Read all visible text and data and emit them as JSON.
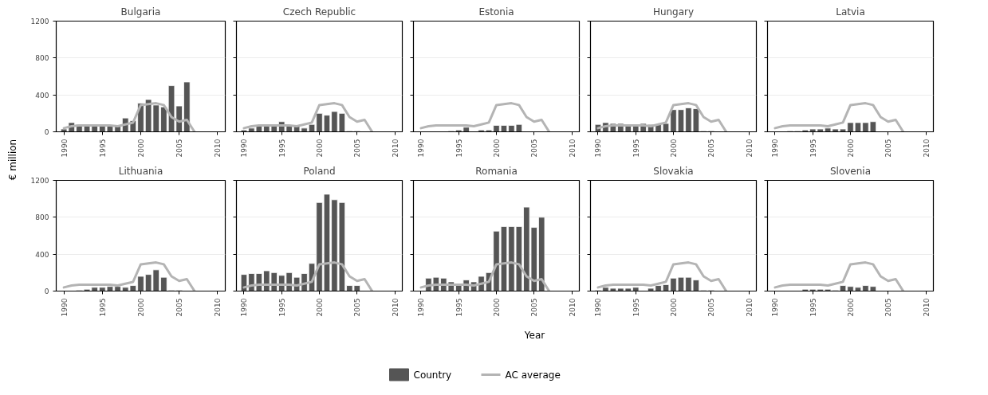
{
  "chart_data": [
    {
      "type": "bar",
      "title": "Bulgaria",
      "ylabel": "€ million",
      "legend": "bottom",
      "x": [
        1990,
        1991,
        1992,
        1993,
        1994,
        1995,
        1996,
        1997,
        1998,
        1999,
        2000,
        2001,
        2002,
        2003,
        2004,
        2005,
        2006,
        2007
      ],
      "xlim": [
        1989,
        2011
      ],
      "xticks": [
        1990,
        1995,
        2000,
        2005,
        2010
      ],
      "ylim": [
        0,
        1200
      ],
      "yticks": [
        0,
        400,
        800,
        1200
      ],
      "grid": "y",
      "series": [
        {
          "name": "Country",
          "color": "#555555",
          "values": [
            30,
            100,
            80,
            80,
            60,
            60,
            60,
            60,
            150,
            120,
            310,
            350,
            290,
            270,
            500,
            280,
            540,
            null
          ]
        },
        {
          "name": "AC average",
          "type": "line",
          "color": "#b4b4b4",
          "values": [
            40,
            60,
            70,
            70,
            70,
            70,
            70,
            60,
            80,
            100,
            290,
            300,
            310,
            290,
            160,
            110,
            130,
            0
          ]
        }
      ]
    },
    {
      "type": "bar",
      "title": "Czech Republic",
      "tick_labels": "x",
      "x": [
        1990,
        1991,
        1992,
        1993,
        1994,
        1995,
        1996,
        1997,
        1998,
        1999,
        2000,
        2001,
        2002,
        2003,
        2004,
        2005,
        2006,
        2007
      ],
      "xlim": [
        1989,
        2011
      ],
      "xticks": [
        1990,
        1995,
        2000,
        2005,
        2010
      ],
      "ylim": [
        0,
        1200
      ],
      "yticks": [
        0,
        400,
        800,
        1200
      ],
      "grid": "y",
      "series": [
        {
          "color": "#555555",
          "values": [
            20,
            40,
            60,
            60,
            60,
            110,
            60,
            60,
            40,
            80,
            200,
            180,
            220,
            200,
            10,
            10,
            null,
            null
          ]
        },
        {
          "type": "line",
          "color": "#b4b4b4",
          "values": [
            40,
            60,
            70,
            70,
            70,
            70,
            70,
            60,
            80,
            100,
            290,
            300,
            310,
            290,
            160,
            110,
            130,
            0
          ]
        }
      ]
    },
    {
      "type": "bar",
      "title": "Estonia",
      "tick_labels": "x",
      "x": [
        1990,
        1991,
        1992,
        1993,
        1994,
        1995,
        1996,
        1997,
        1998,
        1999,
        2000,
        2001,
        2002,
        2003,
        2004,
        2005,
        2006,
        2007
      ],
      "xlim": [
        1989,
        2011
      ],
      "xticks": [
        1990,
        1995,
        2000,
        2005,
        2010
      ],
      "ylim": [
        0,
        1200
      ],
      "yticks": [
        0,
        400,
        800,
        1200
      ],
      "grid": "y",
      "series": [
        {
          "color": "#555555",
          "values": [
            null,
            null,
            5,
            5,
            10,
            20,
            50,
            null,
            20,
            20,
            70,
            70,
            70,
            80,
            null,
            null,
            null,
            null
          ]
        },
        {
          "type": "line",
          "color": "#b4b4b4",
          "values": [
            40,
            60,
            70,
            70,
            70,
            70,
            70,
            60,
            80,
            100,
            290,
            300,
            310,
            290,
            160,
            110,
            130,
            0
          ]
        }
      ]
    },
    {
      "type": "bar",
      "title": "Hungary",
      "tick_labels": "x",
      "x": [
        1990,
        1991,
        1992,
        1993,
        1994,
        1995,
        1996,
        1997,
        1998,
        1999,
        2000,
        2001,
        2002,
        2003,
        2004,
        2005,
        2006,
        2007
      ],
      "xlim": [
        1989,
        2011
      ],
      "xticks": [
        1990,
        1995,
        2000,
        2005,
        2010
      ],
      "ylim": [
        0,
        1200
      ],
      "yticks": [
        0,
        400,
        800,
        1200
      ],
      "grid": "y",
      "series": [
        {
          "color": "#555555",
          "values": [
            80,
            100,
            90,
            90,
            70,
            80,
            90,
            80,
            80,
            90,
            240,
            240,
            260,
            250,
            10,
            10,
            null,
            null
          ]
        },
        {
          "type": "line",
          "color": "#b4b4b4",
          "values": [
            40,
            60,
            70,
            70,
            70,
            70,
            70,
            60,
            80,
            100,
            290,
            300,
            310,
            290,
            160,
            110,
            130,
            0
          ]
        }
      ]
    },
    {
      "type": "bar",
      "title": "Latvia",
      "tick_labels": "x",
      "x": [
        1990,
        1991,
        1992,
        1993,
        1994,
        1995,
        1996,
        1997,
        1998,
        1999,
        2000,
        2001,
        2002,
        2003,
        2004,
        2005,
        2006,
        2007
      ],
      "xlim": [
        1989,
        2011
      ],
      "xticks": [
        1990,
        1995,
        2000,
        2005,
        2010
      ],
      "ylim": [
        0,
        1200
      ],
      "yticks": [
        0,
        400,
        800,
        1200
      ],
      "grid": "y",
      "series": [
        {
          "color": "#555555",
          "values": [
            null,
            null,
            10,
            10,
            20,
            30,
            30,
            40,
            30,
            30,
            100,
            100,
            100,
            110,
            null,
            null,
            null,
            null
          ]
        },
        {
          "type": "line",
          "color": "#b4b4b4",
          "values": [
            40,
            60,
            70,
            70,
            70,
            70,
            70,
            60,
            80,
            100,
            290,
            300,
            310,
            290,
            160,
            110,
            130,
            0
          ]
        }
      ]
    },
    {
      "type": "bar",
      "title": "Lithuania",
      "x": [
        1990,
        1991,
        1992,
        1993,
        1994,
        1995,
        1996,
        1997,
        1998,
        1999,
        2000,
        2001,
        2002,
        2003,
        2004,
        2005,
        2006,
        2007
      ],
      "xlim": [
        1989,
        2011
      ],
      "xticks": [
        1990,
        1995,
        2000,
        2005,
        2010
      ],
      "ylim": [
        0,
        1200
      ],
      "yticks": [
        0,
        400,
        800,
        1200
      ],
      "grid": "y",
      "series": [
        {
          "color": "#555555",
          "values": [
            null,
            null,
            10,
            20,
            40,
            40,
            50,
            50,
            40,
            60,
            160,
            180,
            230,
            150,
            10,
            10,
            null,
            null
          ]
        },
        {
          "type": "line",
          "color": "#b4b4b4",
          "values": [
            40,
            60,
            70,
            70,
            70,
            70,
            70,
            60,
            80,
            100,
            290,
            300,
            310,
            290,
            160,
            110,
            130,
            0
          ]
        }
      ]
    },
    {
      "type": "bar",
      "title": "Poland",
      "tick_labels": "x",
      "x": [
        1990,
        1991,
        1992,
        1993,
        1994,
        1995,
        1996,
        1997,
        1998,
        1999,
        2000,
        2001,
        2002,
        2003,
        2004,
        2005,
        2006,
        2007
      ],
      "xlim": [
        1989,
        2011
      ],
      "xticks": [
        1990,
        1995,
        2000,
        2005,
        2010
      ],
      "ylim": [
        0,
        1200
      ],
      "yticks": [
        0,
        400,
        800,
        1200
      ],
      "grid": "y",
      "series": [
        {
          "color": "#555555",
          "values": [
            180,
            190,
            190,
            220,
            200,
            170,
            200,
            150,
            190,
            300,
            960,
            1050,
            990,
            960,
            60,
            60,
            null,
            null
          ]
        },
        {
          "type": "line",
          "color": "#b4b4b4",
          "values": [
            40,
            60,
            70,
            70,
            70,
            70,
            70,
            60,
            80,
            100,
            290,
            300,
            310,
            290,
            160,
            110,
            130,
            0
          ]
        }
      ]
    },
    {
      "type": "bar",
      "title": "Romania",
      "xlabel": "Year",
      "tick_labels": "x",
      "x": [
        1990,
        1991,
        1992,
        1993,
        1994,
        1995,
        1996,
        1997,
        1998,
        1999,
        2000,
        2001,
        2002,
        2003,
        2004,
        2005,
        2006,
        2007
      ],
      "xlim": [
        1989,
        2011
      ],
      "xticks": [
        1990,
        1995,
        2000,
        2005,
        2010
      ],
      "ylim": [
        0,
        1200
      ],
      "yticks": [
        0,
        400,
        800,
        1200
      ],
      "grid": "y",
      "series": [
        {
          "color": "#555555",
          "values": [
            null,
            140,
            150,
            140,
            100,
            80,
            120,
            100,
            160,
            200,
            650,
            700,
            700,
            700,
            910,
            690,
            800,
            null
          ]
        },
        {
          "type": "line",
          "color": "#b4b4b4",
          "values": [
            40,
            60,
            70,
            70,
            70,
            70,
            70,
            60,
            80,
            100,
            290,
            300,
            310,
            290,
            160,
            110,
            130,
            0
          ]
        }
      ]
    },
    {
      "type": "bar",
      "title": "Slovakia",
      "tick_labels": "x",
      "x": [
        1990,
        1991,
        1992,
        1993,
        1994,
        1995,
        1996,
        1997,
        1998,
        1999,
        2000,
        2001,
        2002,
        2003,
        2004,
        2005,
        2006,
        2007
      ],
      "xlim": [
        1989,
        2011
      ],
      "xticks": [
        1990,
        1995,
        2000,
        2005,
        2010
      ],
      "ylim": [
        0,
        1200
      ],
      "yticks": [
        0,
        400,
        800,
        1200
      ],
      "grid": "y",
      "series": [
        {
          "color": "#555555",
          "values": [
            10,
            40,
            30,
            30,
            30,
            40,
            null,
            30,
            60,
            70,
            140,
            150,
            150,
            120,
            10,
            10,
            null,
            null
          ]
        },
        {
          "type": "line",
          "color": "#b4b4b4",
          "values": [
            40,
            60,
            70,
            70,
            70,
            70,
            70,
            60,
            80,
            100,
            290,
            300,
            310,
            290,
            160,
            110,
            130,
            0
          ]
        }
      ]
    },
    {
      "type": "bar",
      "title": "Slovenia",
      "tick_labels": "x",
      "x": [
        1990,
        1991,
        1992,
        1993,
        1994,
        1995,
        1996,
        1997,
        1998,
        1999,
        2000,
        2001,
        2002,
        2003,
        2004,
        2005,
        2006,
        2007
      ],
      "xlim": [
        1989,
        2011
      ],
      "xticks": [
        1990,
        1995,
        2000,
        2005,
        2010
      ],
      "ylim": [
        0,
        1200
      ],
      "yticks": [
        0,
        400,
        800,
        1200
      ],
      "grid": "y",
      "series": [
        {
          "color": "#555555",
          "values": [
            null,
            null,
            null,
            null,
            20,
            20,
            20,
            20,
            10,
            60,
            50,
            40,
            60,
            50,
            null,
            null,
            null,
            null
          ]
        },
        {
          "type": "line",
          "color": "#b4b4b4",
          "values": [
            40,
            60,
            70,
            70,
            70,
            70,
            70,
            60,
            80,
            100,
            290,
            300,
            310,
            290,
            160,
            110,
            130,
            0
          ]
        }
      ]
    }
  ]
}
